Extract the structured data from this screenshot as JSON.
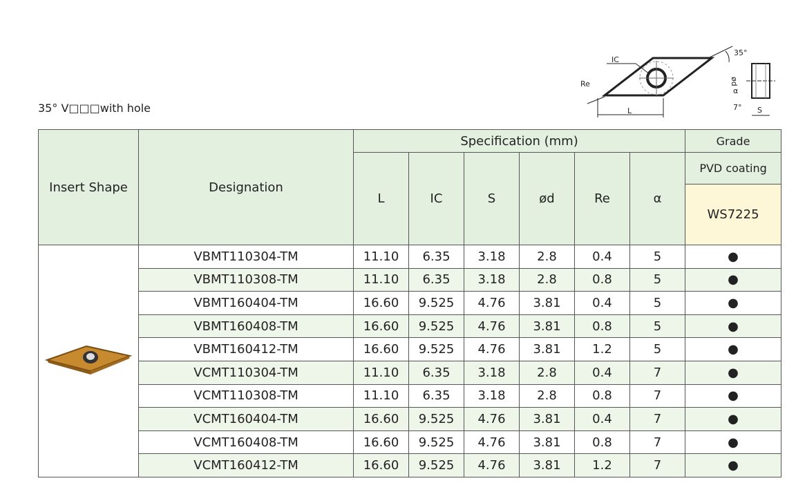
{
  "header": {
    "title": "35° V□□□with hole"
  },
  "diagram": {
    "labels": {
      "ic": "IC",
      "re": "Re",
      "l": "L",
      "angle": "35°",
      "d": "ød",
      "alpha": "α",
      "relief": "7°",
      "s": "S"
    }
  },
  "table": {
    "headers": {
      "insert_shape": "Insert Shape",
      "designation": "Designation",
      "specification": "Specification (mm)",
      "grade": "Grade",
      "columns": [
        "L",
        "IC",
        "S",
        "ød",
        "Re",
        "α"
      ],
      "coating": "PVD coating",
      "grade_name": "WS7225"
    },
    "rows": [
      [
        "VBMT110304-TM",
        "11.10",
        "6.35",
        "3.18",
        "2.8",
        "0.4",
        "5",
        "●"
      ],
      [
        "VBMT110308-TM",
        "11.10",
        "6.35",
        "3.18",
        "2.8",
        "0.8",
        "5",
        "●"
      ],
      [
        "VBMT160404-TM",
        "16.60",
        "9.525",
        "4.76",
        "3.81",
        "0.4",
        "5",
        "●"
      ],
      [
        "VBMT160408-TM",
        "16.60",
        "9.525",
        "4.76",
        "3.81",
        "0.8",
        "5",
        "●"
      ],
      [
        "VBMT160412-TM",
        "16.60",
        "9.525",
        "4.76",
        "3.81",
        "1.2",
        "5",
        "●"
      ],
      [
        "VCMT110304-TM",
        "11.10",
        "6.35",
        "3.18",
        "2.8",
        "0.4",
        "7",
        "●"
      ],
      [
        "VCMT110308-TM",
        "11.10",
        "6.35",
        "3.18",
        "2.8",
        "0.8",
        "7",
        "●"
      ],
      [
        "VCMT160404-TM",
        "16.60",
        "9.525",
        "4.76",
        "3.81",
        "0.4",
        "7",
        "●"
      ],
      [
        "VCMT160408-TM",
        "16.60",
        "9.525",
        "4.76",
        "3.81",
        "0.8",
        "7",
        "●"
      ],
      [
        "VCMT160412-TM",
        "16.60",
        "9.525",
        "4.76",
        "3.81",
        "1.2",
        "7",
        "●"
      ]
    ]
  }
}
